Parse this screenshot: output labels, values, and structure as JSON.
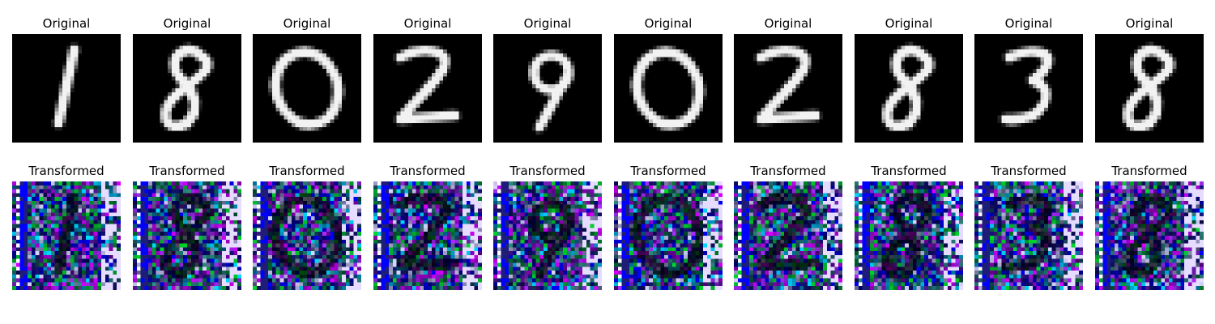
{
  "rows": [
    {
      "kind": "original",
      "title": "Original",
      "digits": [
        1,
        8,
        0,
        2,
        9,
        0,
        2,
        8,
        3,
        8
      ]
    },
    {
      "kind": "transformed",
      "title": "Transformed",
      "count": 10
    }
  ],
  "colors": {
    "background": "#ffffff",
    "digit_background": "#000000",
    "digit_stroke": "#ffffff",
    "noise_palette": [
      "#0000ff",
      "#00ff00",
      "#ff00ff",
      "#00ffff",
      "#ffffff",
      "#1a1a60",
      "#33aa66",
      "#cc33ff"
    ]
  }
}
